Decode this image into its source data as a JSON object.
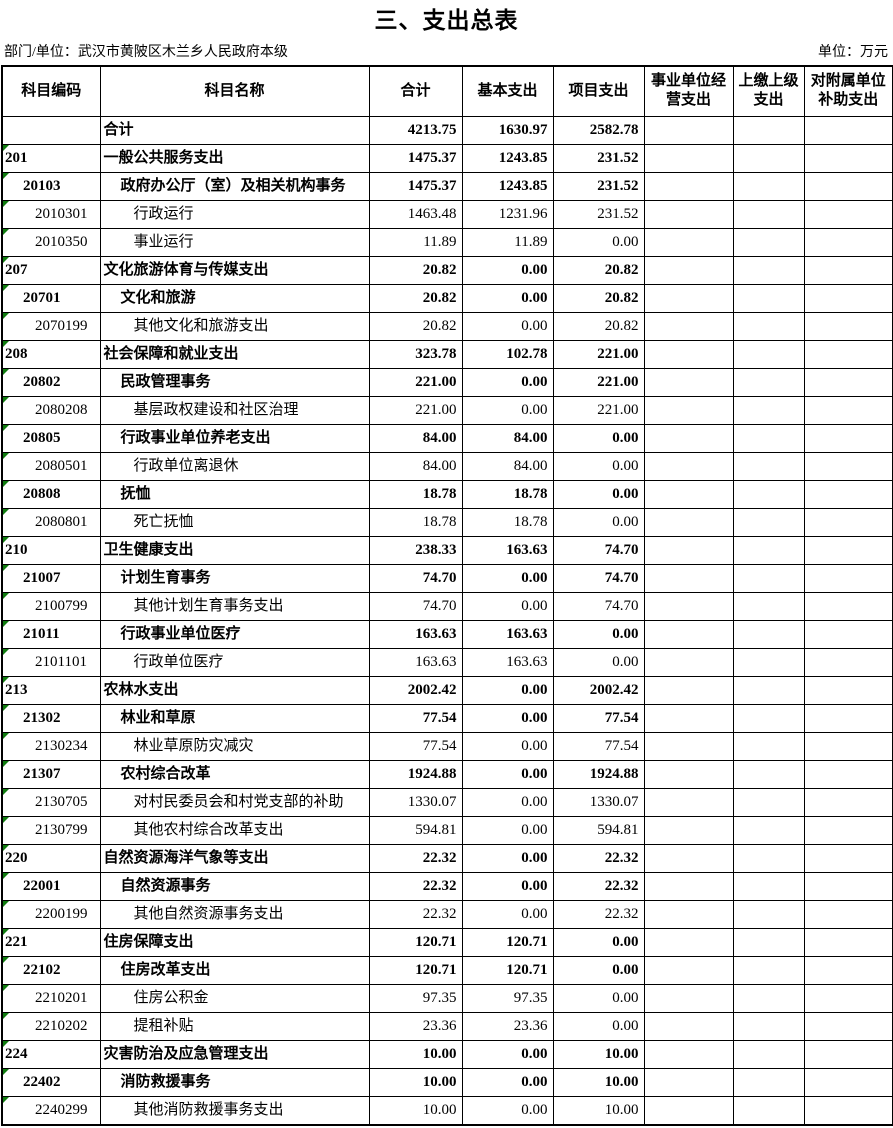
{
  "title": "三、支出总表",
  "meta": {
    "department": "部门/单位：武汉市黄陂区木兰乡人民政府本级",
    "unit": "单位：万元"
  },
  "colors": {
    "error_indicator": "#107C10",
    "border": "#000000",
    "background": "#FFFFFF"
  },
  "table": {
    "columns": [
      "科目编码",
      "科目名称",
      "合计",
      "基本支出",
      "项目支出",
      "事业单位经营支出",
      "上缴上级支出",
      "对附属单位补助支出"
    ],
    "rows": [
      {
        "code": "",
        "name": "合计",
        "total": "4213.75",
        "basic": "1630.97",
        "project": "2582.78",
        "op": "",
        "up": "",
        "sub": "",
        "level": "total"
      },
      {
        "code": "201",
        "name": "一般公共服务支出",
        "total": "1475.37",
        "basic": "1243.85",
        "project": "231.52",
        "op": "",
        "up": "",
        "sub": "",
        "level": "l1"
      },
      {
        "code": "20103",
        "name": "政府办公厅（室）及相关机构事务",
        "total": "1475.37",
        "basic": "1243.85",
        "project": "231.52",
        "op": "",
        "up": "",
        "sub": "",
        "level": "l2"
      },
      {
        "code": "2010301",
        "name": "行政运行",
        "total": "1463.48",
        "basic": "1231.96",
        "project": "231.52",
        "op": "",
        "up": "",
        "sub": "",
        "level": "l3"
      },
      {
        "code": "2010350",
        "name": "事业运行",
        "total": "11.89",
        "basic": "11.89",
        "project": "0.00",
        "op": "",
        "up": "",
        "sub": "",
        "level": "l3"
      },
      {
        "code": "207",
        "name": "文化旅游体育与传媒支出",
        "total": "20.82",
        "basic": "0.00",
        "project": "20.82",
        "op": "",
        "up": "",
        "sub": "",
        "level": "l1"
      },
      {
        "code": "20701",
        "name": "文化和旅游",
        "total": "20.82",
        "basic": "0.00",
        "project": "20.82",
        "op": "",
        "up": "",
        "sub": "",
        "level": "l2"
      },
      {
        "code": "2070199",
        "name": "其他文化和旅游支出",
        "total": "20.82",
        "basic": "0.00",
        "project": "20.82",
        "op": "",
        "up": "",
        "sub": "",
        "level": "l3"
      },
      {
        "code": "208",
        "name": "社会保障和就业支出",
        "total": "323.78",
        "basic": "102.78",
        "project": "221.00",
        "op": "",
        "up": "",
        "sub": "",
        "level": "l1"
      },
      {
        "code": "20802",
        "name": "民政管理事务",
        "total": "221.00",
        "basic": "0.00",
        "project": "221.00",
        "op": "",
        "up": "",
        "sub": "",
        "level": "l2"
      },
      {
        "code": "2080208",
        "name": "基层政权建设和社区治理",
        "total": "221.00",
        "basic": "0.00",
        "project": "221.00",
        "op": "",
        "up": "",
        "sub": "",
        "level": "l3"
      },
      {
        "code": "20805",
        "name": "行政事业单位养老支出",
        "total": "84.00",
        "basic": "84.00",
        "project": "0.00",
        "op": "",
        "up": "",
        "sub": "",
        "level": "l2"
      },
      {
        "code": "2080501",
        "name": "行政单位离退休",
        "total": "84.00",
        "basic": "84.00",
        "project": "0.00",
        "op": "",
        "up": "",
        "sub": "",
        "level": "l3"
      },
      {
        "code": "20808",
        "name": "抚恤",
        "total": "18.78",
        "basic": "18.78",
        "project": "0.00",
        "op": "",
        "up": "",
        "sub": "",
        "level": "l2"
      },
      {
        "code": "2080801",
        "name": "死亡抚恤",
        "total": "18.78",
        "basic": "18.78",
        "project": "0.00",
        "op": "",
        "up": "",
        "sub": "",
        "level": "l3"
      },
      {
        "code": "210",
        "name": "卫生健康支出",
        "total": "238.33",
        "basic": "163.63",
        "project": "74.70",
        "op": "",
        "up": "",
        "sub": "",
        "level": "l1"
      },
      {
        "code": "21007",
        "name": "计划生育事务",
        "total": "74.70",
        "basic": "0.00",
        "project": "74.70",
        "op": "",
        "up": "",
        "sub": "",
        "level": "l2"
      },
      {
        "code": "2100799",
        "name": "其他计划生育事务支出",
        "total": "74.70",
        "basic": "0.00",
        "project": "74.70",
        "op": "",
        "up": "",
        "sub": "",
        "level": "l3"
      },
      {
        "code": "21011",
        "name": "行政事业单位医疗",
        "total": "163.63",
        "basic": "163.63",
        "project": "0.00",
        "op": "",
        "up": "",
        "sub": "",
        "level": "l2"
      },
      {
        "code": "2101101",
        "name": "行政单位医疗",
        "total": "163.63",
        "basic": "163.63",
        "project": "0.00",
        "op": "",
        "up": "",
        "sub": "",
        "level": "l3"
      },
      {
        "code": "213",
        "name": "农林水支出",
        "total": "2002.42",
        "basic": "0.00",
        "project": "2002.42",
        "op": "",
        "up": "",
        "sub": "",
        "level": "l1"
      },
      {
        "code": "21302",
        "name": "林业和草原",
        "total": "77.54",
        "basic": "0.00",
        "project": "77.54",
        "op": "",
        "up": "",
        "sub": "",
        "level": "l2"
      },
      {
        "code": "2130234",
        "name": "林业草原防灾减灾",
        "total": "77.54",
        "basic": "0.00",
        "project": "77.54",
        "op": "",
        "up": "",
        "sub": "",
        "level": "l3"
      },
      {
        "code": "21307",
        "name": "农村综合改革",
        "total": "1924.88",
        "basic": "0.00",
        "project": "1924.88",
        "op": "",
        "up": "",
        "sub": "",
        "level": "l2"
      },
      {
        "code": "2130705",
        "name": "对村民委员会和村党支部的补助",
        "total": "1330.07",
        "basic": "0.00",
        "project": "1330.07",
        "op": "",
        "up": "",
        "sub": "",
        "level": "l3"
      },
      {
        "code": "2130799",
        "name": "其他农村综合改革支出",
        "total": "594.81",
        "basic": "0.00",
        "project": "594.81",
        "op": "",
        "up": "",
        "sub": "",
        "level": "l3"
      },
      {
        "code": "220",
        "name": "自然资源海洋气象等支出",
        "total": "22.32",
        "basic": "0.00",
        "project": "22.32",
        "op": "",
        "up": "",
        "sub": "",
        "level": "l1"
      },
      {
        "code": "22001",
        "name": "自然资源事务",
        "total": "22.32",
        "basic": "0.00",
        "project": "22.32",
        "op": "",
        "up": "",
        "sub": "",
        "level": "l2"
      },
      {
        "code": "2200199",
        "name": "其他自然资源事务支出",
        "total": "22.32",
        "basic": "0.00",
        "project": "22.32",
        "op": "",
        "up": "",
        "sub": "",
        "level": "l3"
      },
      {
        "code": "221",
        "name": "住房保障支出",
        "total": "120.71",
        "basic": "120.71",
        "project": "0.00",
        "op": "",
        "up": "",
        "sub": "",
        "level": "l1"
      },
      {
        "code": "22102",
        "name": "住房改革支出",
        "total": "120.71",
        "basic": "120.71",
        "project": "0.00",
        "op": "",
        "up": "",
        "sub": "",
        "level": "l2"
      },
      {
        "code": "2210201",
        "name": "住房公积金",
        "total": "97.35",
        "basic": "97.35",
        "project": "0.00",
        "op": "",
        "up": "",
        "sub": "",
        "level": "l3"
      },
      {
        "code": "2210202",
        "name": "提租补贴",
        "total": "23.36",
        "basic": "23.36",
        "project": "0.00",
        "op": "",
        "up": "",
        "sub": "",
        "level": "l3"
      },
      {
        "code": "224",
        "name": "灾害防治及应急管理支出",
        "total": "10.00",
        "basic": "0.00",
        "project": "10.00",
        "op": "",
        "up": "",
        "sub": "",
        "level": "l1"
      },
      {
        "code": "22402",
        "name": "消防救援事务",
        "total": "10.00",
        "basic": "0.00",
        "project": "10.00",
        "op": "",
        "up": "",
        "sub": "",
        "level": "l2"
      },
      {
        "code": "2240299",
        "name": "其他消防救援事务支出",
        "total": "10.00",
        "basic": "0.00",
        "project": "10.00",
        "op": "",
        "up": "",
        "sub": "",
        "level": "l3"
      }
    ]
  }
}
